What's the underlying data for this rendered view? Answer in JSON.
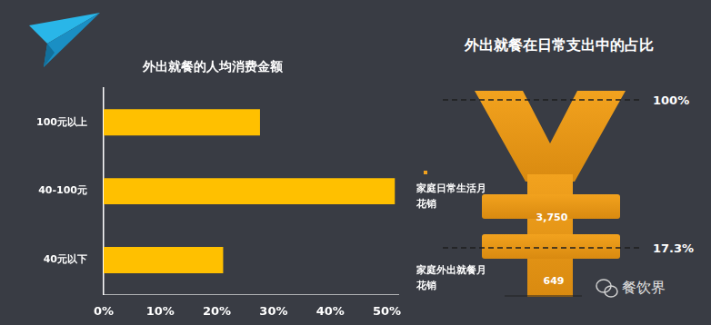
{
  "chart_data": [
    {
      "type": "bar",
      "title": "外出就餐的人均消费金额",
      "orientation": "horizontal",
      "categories": [
        "100元以上",
        "40-100元",
        "40元以下"
      ],
      "values": [
        27.6,
        51.4,
        21.1
      ],
      "color": "#ffc000",
      "xlim": [
        0,
        52
      ],
      "xticks": [
        {
          "value": 0,
          "label": "0%"
        },
        {
          "value": 10,
          "label": "10%"
        },
        {
          "value": 20,
          "label": "20%"
        },
        {
          "value": 30,
          "label": "30%"
        },
        {
          "value": 40,
          "label": "40%"
        },
        {
          "value": 50,
          "label": "50%"
        }
      ],
      "grid": false
    },
    {
      "type": "proportion",
      "title": "外出就餐在日常支出中的占比",
      "categories": [
        "家庭日常生活月花销",
        "家庭外出就餐月花销"
      ],
      "values": [
        3750,
        649
      ],
      "value_labels": [
        "3,750",
        "649"
      ],
      "shares": [
        {
          "value": 100,
          "label": "100%"
        },
        {
          "value": 17.3,
          "label": "17.3%"
        }
      ],
      "color": "#f2a21e"
    }
  ],
  "watermark": "餐饮界"
}
